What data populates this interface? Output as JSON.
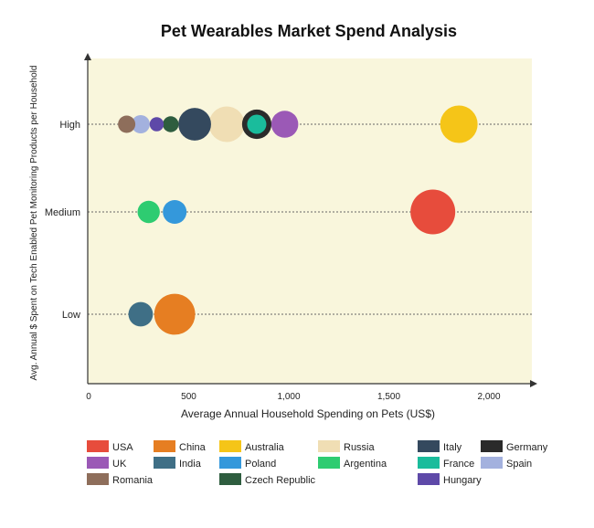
{
  "chart_data": {
    "type": "scatter",
    "title": "Pet Wearables Market Spend Analysis",
    "xlabel": "Average Annual Household Spending on Pets (US$)",
    "ylabel": "Avg. Annual $ Spent on Tech Enabled Pet Monitoring Products per Household",
    "xlim": [
      0,
      2200
    ],
    "x_ticks": [
      0,
      500,
      1000,
      1500,
      2000
    ],
    "x_tick_labels": [
      "0",
      "500",
      "1,000",
      "1,500",
      "2,000"
    ],
    "y_categories": [
      "Low",
      "Medium",
      "High"
    ],
    "grid": "dotted horizontal lines at each category",
    "background": "#f9f6dc",
    "series": [
      {
        "name": "USA",
        "color": "#e74c3c",
        "x": 1720,
        "y": "Medium",
        "size": 6
      },
      {
        "name": "China",
        "color": "#e67e22",
        "x": 430,
        "y": "Low",
        "size": 5
      },
      {
        "name": "Australia",
        "color": "#f5c518",
        "x": 1850,
        "y": "High",
        "size": 4.2
      },
      {
        "name": "Russia",
        "color": "#f0deb4",
        "x": 690,
        "y": "High",
        "size": 3.8
      },
      {
        "name": "Italy",
        "color": "#34495e",
        "x": 530,
        "y": "High",
        "size": 3.2
      },
      {
        "name": "Germany",
        "color": "#2b2b2b",
        "x": 840,
        "y": "High",
        "size": 2.6
      },
      {
        "name": "UK",
        "color": "#9b59b6",
        "x": 980,
        "y": "High",
        "size": 2.2
      },
      {
        "name": "India",
        "color": "#3f6f86",
        "x": 260,
        "y": "Low",
        "size": 1.8
      },
      {
        "name": "Poland",
        "color": "#3498db",
        "x": 430,
        "y": "Medium",
        "size": 1.7
      },
      {
        "name": "Argentina",
        "color": "#2ecc71",
        "x": 300,
        "y": "Medium",
        "size": 1.5
      },
      {
        "name": "France",
        "color": "#1abc9c",
        "x": 840,
        "y": "High",
        "size": 1.1
      },
      {
        "name": "Spain",
        "color": "#a3b1de",
        "x": 260,
        "y": "High",
        "size": 1.0
      },
      {
        "name": "Romania",
        "color": "#8e6e5b",
        "x": 190,
        "y": "High",
        "size": 0.9
      },
      {
        "name": "Czech Republic",
        "color": "#2e5d3f",
        "x": 410,
        "y": "High",
        "size": 0.75
      },
      {
        "name": "Hungary",
        "color": "#5e49a8",
        "x": 340,
        "y": "High",
        "size": 0.6
      }
    ],
    "legend": {
      "placement": "bottom",
      "entries": [
        "USA",
        "China",
        "Australia",
        "Russia",
        "Italy",
        "Germany",
        "UK",
        "India",
        "Poland",
        "Argentina",
        "France",
        "Spain",
        "Romania",
        "Czech Republic",
        "Hungary"
      ]
    }
  }
}
